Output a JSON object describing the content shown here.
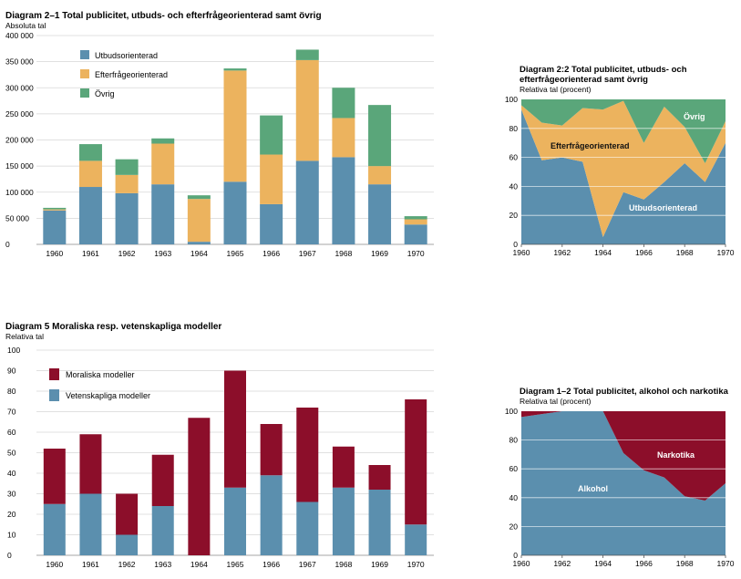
{
  "colors": {
    "blue": "#5b8fae",
    "orange": "#ecb35e",
    "green": "#5aa67a",
    "red": "#8c0e2a",
    "grid": "#d6d6d6"
  },
  "chart_data": [
    {
      "id": "d21",
      "type": "bar",
      "stacked": true,
      "title": "Diagram 2–1 Total publicitet, utbuds- och efterfrågeorienterad samt övrig",
      "ylabel": "Absoluta tal",
      "ylim": [
        0,
        400000
      ],
      "yticks": [
        "0",
        "50 000",
        "100 000",
        "150 000",
        "200 000",
        "250 000",
        "300 000",
        "350 000",
        "400 000"
      ],
      "categories": [
        "1960",
        "1961",
        "1962",
        "1963",
        "1964",
        "1965",
        "1966",
        "1967",
        "1968",
        "1969",
        "1970"
      ],
      "legend_position": "top-left",
      "series": [
        {
          "name": "Utbudsorienterad",
          "color": "blue",
          "values": [
            65000,
            110000,
            98000,
            115000,
            5000,
            120000,
            77000,
            160000,
            167000,
            115000,
            38000
          ]
        },
        {
          "name": "Efterfrågeorienterad",
          "color": "orange",
          "values": [
            2000,
            50000,
            35000,
            78000,
            82000,
            213000,
            95000,
            193000,
            75000,
            35000,
            10000
          ]
        },
        {
          "name": "Övrig",
          "color": "green",
          "values": [
            3000,
            32000,
            30000,
            10000,
            7000,
            4000,
            75000,
            20000,
            58000,
            117000,
            6000
          ]
        }
      ]
    },
    {
      "id": "d22",
      "type": "area",
      "stacked": true,
      "title": "Diagram 2:2 Total publicitet, utbuds- och efterfrågeorienterad samt övrig",
      "ylabel": "Relativa tal (procent)",
      "ylim": [
        0,
        100
      ],
      "yticks": [
        "0",
        "20",
        "40",
        "60",
        "80",
        "100"
      ],
      "x": [
        1960,
        1961,
        1962,
        1963,
        1964,
        1965,
        1966,
        1967,
        1968,
        1969,
        1970
      ],
      "xticks": [
        "1960",
        "1962",
        "1964",
        "1966",
        "1968",
        "1970"
      ],
      "area_labels": [
        "Efterfrågeorienterad",
        "Utbudsorienterad",
        "Övrig"
      ],
      "series": [
        {
          "name": "Utbudsorienterad",
          "color": "blue",
          "values": [
            93,
            58,
            60,
            57,
            5,
            36,
            31,
            43,
            56,
            43,
            70
          ]
        },
        {
          "name": "Efterfrågeorienterad",
          "color": "orange",
          "values": [
            3,
            26,
            22,
            37,
            88,
            63,
            39,
            52,
            25,
            13,
            15
          ]
        },
        {
          "name": "Övrig",
          "color": "green",
          "values": [
            4,
            16,
            18,
            6,
            7,
            1,
            30,
            5,
            19,
            44,
            15
          ]
        }
      ]
    },
    {
      "id": "d5",
      "type": "bar",
      "stacked": true,
      "title": "Diagram 5 Moraliska resp. vetenskapliga modeller",
      "ylabel": "Relativa tal",
      "ylim": [
        0,
        100
      ],
      "yticks": [
        "0",
        "10",
        "20",
        "30",
        "40",
        "50",
        "60",
        "70",
        "80",
        "90",
        "100"
      ],
      "categories": [
        "1960",
        "1961",
        "1962",
        "1963",
        "1964",
        "1965",
        "1966",
        "1967",
        "1968",
        "1969",
        "1970"
      ],
      "legend_position": "top-left",
      "series": [
        {
          "name": "Vetenskapliga modeller",
          "color": "blue",
          "values": [
            25,
            30,
            10,
            24,
            0,
            33,
            39,
            26,
            33,
            32,
            15
          ]
        },
        {
          "name": "Moraliska modeller",
          "color": "red",
          "values": [
            27,
            29,
            20,
            25,
            67,
            57,
            25,
            46,
            20,
            12,
            61
          ]
        }
      ],
      "legend_order": [
        "Moraliska modeller",
        "Vetenskapliga modeller"
      ]
    },
    {
      "id": "d12",
      "type": "area",
      "stacked": true,
      "title": "Diagram 1–2 Total publicitet, alkohol och narkotika",
      "ylabel": "Relativa tal (procent)",
      "ylim": [
        0,
        100
      ],
      "yticks": [
        "0",
        "20",
        "40",
        "60",
        "80",
        "100"
      ],
      "x": [
        1960,
        1961,
        1962,
        1963,
        1964,
        1965,
        1966,
        1967,
        1968,
        1969,
        1970
      ],
      "xticks": [
        "1960",
        "1962",
        "1964",
        "1966",
        "1968",
        "1970"
      ],
      "area_labels": [
        "Narkotika",
        "Alkohol"
      ],
      "series": [
        {
          "name": "Alkohol",
          "color": "blue",
          "values": [
            96,
            98,
            100,
            100,
            100,
            71,
            59,
            54,
            41,
            38,
            50
          ]
        },
        {
          "name": "Narkotika",
          "color": "red",
          "values": [
            4,
            2,
            0,
            0,
            0,
            29,
            41,
            46,
            59,
            62,
            50
          ]
        }
      ]
    }
  ]
}
